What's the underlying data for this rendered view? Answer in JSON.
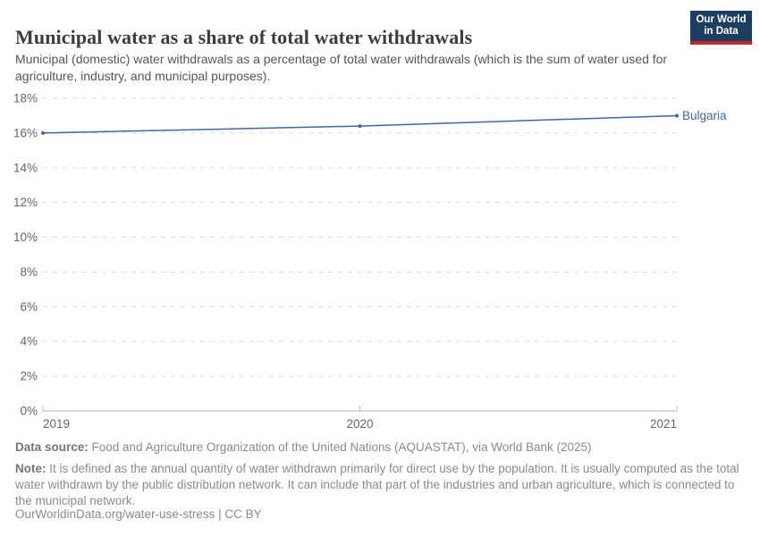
{
  "header": {
    "title": "Municipal water as a share of total water withdrawals",
    "subtitle": "Municipal (domestic) water withdrawals as a percentage of total water withdrawals (which is the sum of water used for agriculture, industry, and municipal purposes).",
    "logo": {
      "line1": "Our World",
      "line2": "in Data",
      "bg_color": "#1d3d63",
      "bar_color": "#c1272d"
    }
  },
  "chart_data": {
    "type": "line",
    "title": "Municipal water as a share of total water withdrawals",
    "x": [
      2019,
      2020,
      2021
    ],
    "xticks": [
      "2019",
      "2020",
      "2021"
    ],
    "series": [
      {
        "name": "Bulgaria",
        "values": [
          16.0,
          16.4,
          17.0
        ],
        "color": "#4465a3"
      }
    ],
    "unit": "%",
    "ylim": [
      0,
      18
    ],
    "yticks": [
      0,
      2,
      4,
      6,
      8,
      10,
      12,
      14,
      16,
      18
    ],
    "grid": "horizontal-dashed",
    "legend_position": "end-of-line-label",
    "entity_label": "Bulgaria",
    "colors": {
      "line": "#4465a3",
      "gridline": "#dcdcdc",
      "axis": "#c4c4c4",
      "tick_text": "#666666"
    }
  },
  "footer": {
    "datasource_label": "Data source:",
    "datasource_text": " Food and Agriculture Organization of the United Nations (AQUASTAT), via World Bank (2025)",
    "note_label": "Note:",
    "note_text": " It is defined as the annual quantity of water withdrawn primarily for direct use by the population. It is usually computed as the total water withdrawn by the public distribution network. It can include that part of the industries and urban agriculture, which is connected to the municipal network.",
    "url": "OurWorldinData.org/water-use-stress",
    "separator": " | ",
    "license": "CC BY"
  }
}
